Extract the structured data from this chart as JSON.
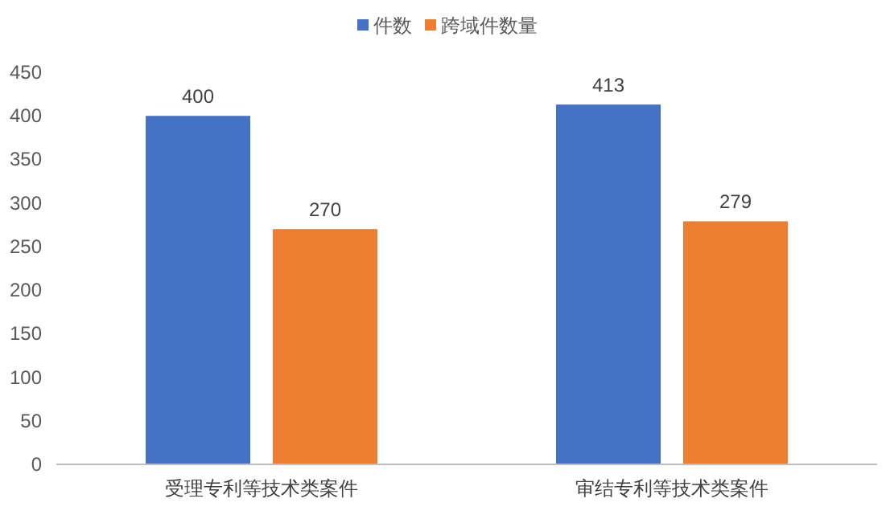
{
  "chart_data": {
    "type": "bar",
    "categories": [
      "受理专利等技术类案件",
      "审结专利等技术类案件"
    ],
    "series": [
      {
        "name": "件数",
        "color": "#4472c4",
        "values": [
          400,
          413
        ]
      },
      {
        "name": "跨域件数量",
        "color": "#ed7d31",
        "values": [
          270,
          279
        ]
      }
    ],
    "ylim": [
      0,
      450
    ],
    "yticks": [
      0,
      50,
      100,
      150,
      200,
      250,
      300,
      350,
      400,
      450
    ],
    "data_labels": true,
    "legend": "top",
    "grid": false
  }
}
